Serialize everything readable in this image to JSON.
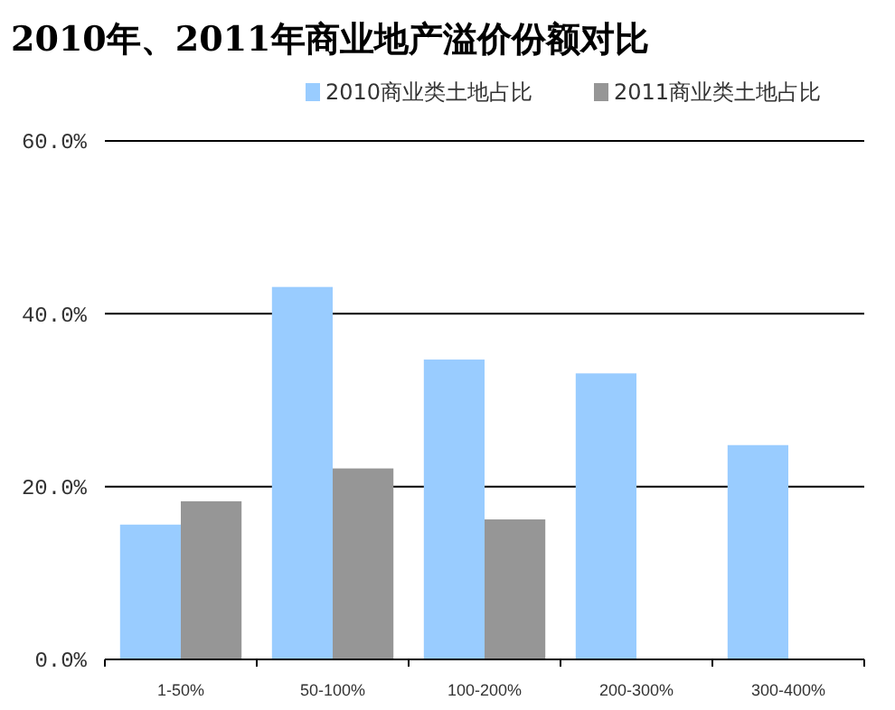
{
  "chart_data": {
    "type": "bar",
    "title": "2010年、2011年商业地产溢价份额对比",
    "categories": [
      "1-50%",
      "50-100%",
      "100-200%",
      "200-300%",
      "300-400%"
    ],
    "series": [
      {
        "name": "2010商业类土地占比",
        "color": "#99ccff",
        "values": [
          15.6,
          43.1,
          34.7,
          33.1,
          24.8
        ]
      },
      {
        "name": "2011商业类土地占比",
        "color": "#969696",
        "values": [
          18.3,
          22.1,
          16.2,
          null,
          null
        ]
      }
    ],
    "ylim": [
      0,
      60
    ],
    "yticks": [
      {
        "value": 0,
        "label": "0.0%"
      },
      {
        "value": 20,
        "label": "20.0%"
      },
      {
        "value": 40,
        "label": "40.0%"
      },
      {
        "value": 60,
        "label": "60.0%"
      }
    ],
    "grid": "y",
    "legend": "top right"
  }
}
